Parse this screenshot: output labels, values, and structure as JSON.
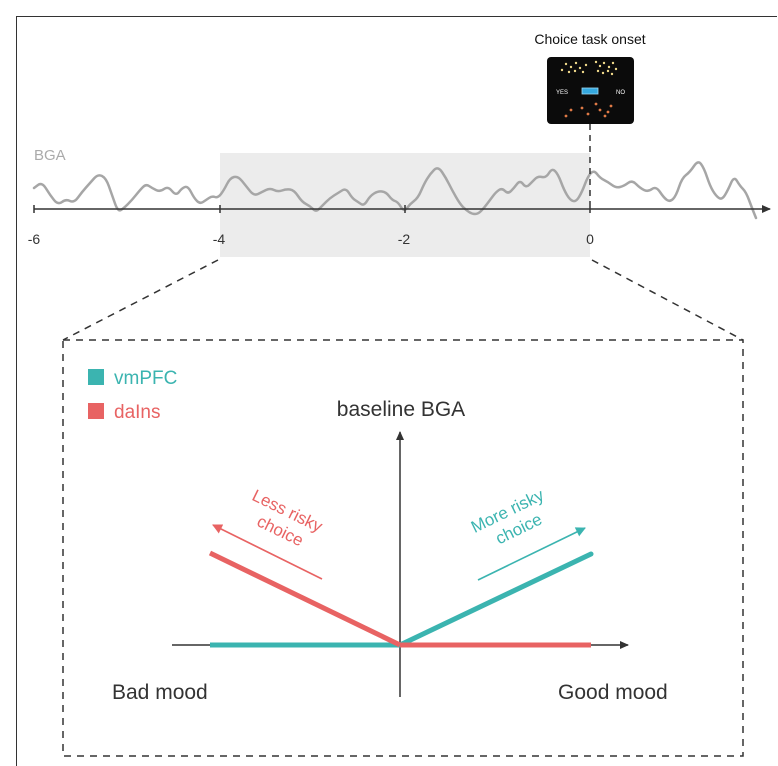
{
  "top_panel": {
    "signal_label": "BGA",
    "x_ticks": [
      "-6",
      "-4",
      "-2",
      "0"
    ],
    "onset_label": "Choice task onset",
    "screen": {
      "yes_label": "YES",
      "no_label": "NO"
    },
    "highlight_window": "-4 to 0"
  },
  "bottom_panel": {
    "legend": [
      {
        "label": "vmPFC",
        "color": "#3bb4b0"
      },
      {
        "label": "daIns",
        "color": "#e86363"
      }
    ],
    "y_axis_label": "baseline BGA",
    "x_left_label": "Bad mood",
    "x_right_label": "Good mood",
    "left_arrow_label": [
      "Less risky",
      "choice"
    ],
    "right_arrow_label": [
      "More risky",
      "choice"
    ]
  },
  "colors": {
    "teal": "#3bb4b0",
    "red": "#e86363",
    "trace": "#a6a6a6",
    "window": "#ececec",
    "axis": "#333333"
  }
}
